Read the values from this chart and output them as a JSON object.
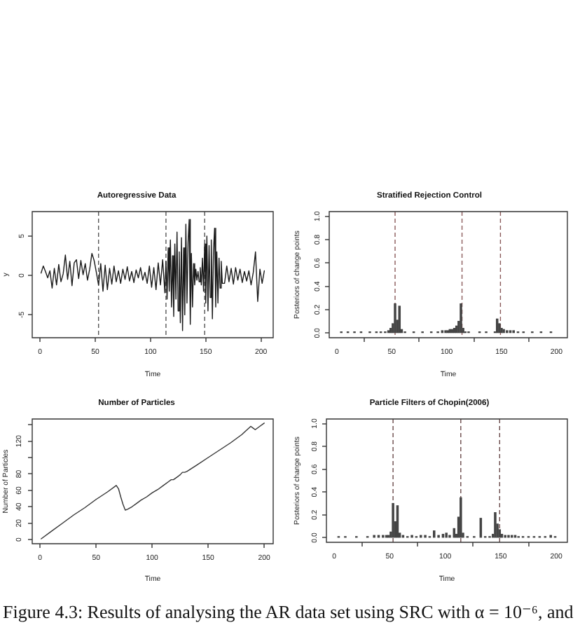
{
  "chart_data": [
    {
      "type": "line",
      "title": "Autoregressive Data",
      "xlabel": "Time",
      "ylabel": "y",
      "color": "#1a1a1a",
      "xlim": [
        -7,
        211
      ],
      "ylim": [
        -7.9,
        8.1
      ],
      "xticks": [
        0,
        50,
        100,
        150,
        200
      ],
      "yticks": [
        -5,
        0,
        5
      ],
      "x": [
        1,
        3,
        5,
        7,
        9,
        11,
        13,
        15,
        17,
        19,
        21,
        23,
        25,
        27,
        29,
        31,
        33,
        35,
        37,
        39,
        41,
        43,
        45,
        47,
        49,
        51,
        53,
        55,
        57,
        59,
        61,
        63,
        65,
        67,
        69,
        71,
        73,
        75,
        77,
        79,
        81,
        83,
        85,
        87,
        89,
        91,
        93,
        95,
        97,
        99,
        101,
        103,
        105,
        107,
        109,
        111,
        113,
        114,
        115,
        116,
        117,
        118,
        119,
        120,
        121,
        122,
        123,
        124,
        125,
        126,
        127,
        128,
        129,
        130,
        131,
        132,
        133,
        134,
        135,
        136,
        137,
        138,
        139,
        140,
        141,
        142,
        143,
        144,
        145,
        146,
        147,
        148,
        149,
        150,
        151,
        152,
        153,
        154,
        155,
        156,
        157,
        158,
        159,
        160,
        161,
        162,
        163,
        164,
        165,
        167,
        169,
        171,
        173,
        175,
        177,
        179,
        181,
        183,
        185,
        187,
        189,
        191,
        193,
        195,
        197,
        199,
        201,
        203
      ],
      "values": [
        0.3,
        1.2,
        0.5,
        -0.3,
        0.6,
        -1.6,
        0.9,
        -1.2,
        1.4,
        -0.8,
        0.2,
        2.6,
        -0.5,
        1.8,
        -1.3,
        1.6,
        2.0,
        -0.4,
        1.9,
        0.1,
        1.5,
        -0.6,
        0.8,
        2.8,
        1.9,
        0.4,
        -1.2,
        1.5,
        -2.0,
        1.3,
        -1.8,
        0.9,
        -1.1,
        1.2,
        -0.8,
        0.6,
        -1.0,
        0.8,
        -0.5,
        1.1,
        -0.7,
        0.5,
        -0.9,
        0.7,
        -0.3,
        1.0,
        -0.6,
        0.4,
        -1.0,
        1.2,
        -1.5,
        1.0,
        -1.8,
        1.6,
        -1.2,
        2.0,
        -2.2,
        1.8,
        -3.0,
        3.5,
        -2.0,
        4.5,
        -4.0,
        2.5,
        -5.2,
        4.0,
        -3.0,
        5.5,
        -4.5,
        3.0,
        -6.0,
        4.8,
        -7.0,
        3.5,
        -5.0,
        6.5,
        -3.5,
        4.2,
        7.1,
        -6.2,
        2.8,
        -4.0,
        1.5,
        -1.2,
        0.8,
        -0.6,
        0.5,
        -0.8,
        1.0,
        -1.2,
        2.2,
        -2.0,
        4.0,
        -3.5,
        5.0,
        -4.5,
        3.8,
        -2.8,
        4.5,
        -5.5,
        3.2,
        6.0,
        -4.0,
        3.0,
        -3.5,
        2.2,
        -1.6,
        1.8,
        -1.0,
        -1.0,
        1.2,
        -0.8,
        0.9,
        -1.1,
        1.0,
        -0.6,
        0.8,
        -0.9,
        0.5,
        -0.7,
        0.6,
        -1.2,
        0.4,
        3.0,
        -3.3,
        0.8,
        -1.0,
        0.6
      ],
      "ref_lines": [
        {
          "axis": "x",
          "value": 53,
          "color": "#555555",
          "line_style": "dashed"
        },
        {
          "axis": "x",
          "value": 114,
          "color": "#555555",
          "line_style": "dashed"
        },
        {
          "axis": "x",
          "value": 149,
          "color": "#555555",
          "line_style": "dashed"
        }
      ]
    },
    {
      "type": "bar",
      "title": "Stratified Rejection Control",
      "xlabel": "Time",
      "ylabel": "Posteriors of change points",
      "color": "#444444",
      "xlim": [
        -7,
        210
      ],
      "ylim": [
        -0.04,
        1.04
      ],
      "xticks": [
        0,
        50,
        100,
        150,
        200
      ],
      "yticks": [
        {
          "value": 0,
          "label": "0.0"
        },
        0.2,
        0.4,
        0.6,
        0.8,
        {
          "value": 1,
          "label": "1.0"
        }
      ],
      "x": [
        4,
        10,
        16,
        22,
        30,
        36,
        40,
        44,
        47,
        49,
        51,
        53,
        55,
        57,
        59,
        62,
        70,
        78,
        86,
        92,
        96,
        99,
        101,
        103,
        105,
        107,
        109,
        111,
        113,
        115,
        117,
        120,
        130,
        136,
        144,
        146,
        148,
        150,
        152,
        155,
        158,
        161,
        165,
        170,
        178,
        186,
        195
      ],
      "values": [
        0.01,
        0.01,
        0.01,
        0.01,
        0.01,
        0.01,
        0.01,
        0.01,
        0.02,
        0.04,
        0.08,
        0.25,
        0.11,
        0.23,
        0.03,
        0.01,
        0.01,
        0.01,
        0.01,
        0.01,
        0.02,
        0.02,
        0.02,
        0.03,
        0.03,
        0.04,
        0.06,
        0.1,
        0.25,
        0.04,
        0.01,
        0.01,
        0.01,
        0.01,
        0.01,
        0.12,
        0.08,
        0.04,
        0.03,
        0.02,
        0.02,
        0.02,
        0.01,
        0.01,
        0.01,
        0.01,
        0.01
      ],
      "ref_lines": [
        {
          "axis": "x",
          "value": 53,
          "color": "#8a5a5a",
          "line_style": "dashed"
        },
        {
          "axis": "x",
          "value": 114,
          "color": "#8a5a5a",
          "line_style": "dashed"
        },
        {
          "axis": "x",
          "value": 149,
          "color": "#8a5a5a",
          "line_style": "dashed"
        }
      ]
    },
    {
      "type": "line",
      "title": "Number of Particles",
      "xlabel": "Time",
      "ylabel": "Number of Particles",
      "color": "#333333",
      "xlim": [
        -7,
        208
      ],
      "ylim": [
        -5,
        147
      ],
      "xticks": [
        0,
        50,
        100,
        150,
        200
      ],
      "yticks": [
        0,
        20,
        40,
        60,
        80,
        {
          "value": 100,
          "label": null
        },
        120,
        {
          "value": 140,
          "label": null
        }
      ],
      "x": [
        1,
        10,
        20,
        30,
        40,
        50,
        60,
        68,
        70,
        72,
        74,
        76,
        78,
        82,
        86,
        90,
        95,
        100,
        105,
        110,
        115,
        117,
        119,
        121,
        125,
        127,
        129,
        131,
        140,
        150,
        160,
        170,
        180,
        188,
        190,
        192,
        196,
        200
      ],
      "values": [
        1,
        10,
        20,
        30,
        39,
        49,
        58,
        66,
        62,
        52,
        43,
        36,
        37,
        40,
        44,
        48,
        52,
        57,
        61,
        66,
        71,
        73,
        73,
        75,
        79,
        82,
        82,
        83,
        91,
        100,
        109,
        118,
        128,
        138,
        136,
        134,
        138,
        142
      ]
    },
    {
      "type": "bar",
      "title": "Particle Filters of Chopin(2006)",
      "xlabel": "Time",
      "ylabel": "Posteriors of change points",
      "color": "#444444",
      "xlim": [
        -7,
        210
      ],
      "ylim": [
        -0.04,
        1.04
      ],
      "xticks": [
        0,
        50,
        100,
        150,
        200
      ],
      "yticks": [
        {
          "value": 0,
          "label": "0.0"
        },
        0.2,
        0.4,
        0.6,
        0.8,
        {
          "value": 1,
          "label": "1.0"
        }
      ],
      "x": [
        4,
        10,
        20,
        30,
        36,
        40,
        44,
        47,
        49,
        51,
        53,
        55,
        57,
        59,
        62,
        66,
        70,
        74,
        78,
        82,
        86,
        90,
        94,
        98,
        101,
        104,
        108,
        110,
        112,
        114,
        116,
        120,
        126,
        132,
        136,
        140,
        143,
        145,
        147,
        149,
        151,
        154,
        157,
        160,
        163,
        166,
        170,
        175,
        180,
        185,
        190,
        195,
        199
      ],
      "values": [
        0.01,
        0.01,
        0.01,
        0.01,
        0.02,
        0.02,
        0.02,
        0.02,
        0.02,
        0.05,
        0.3,
        0.14,
        0.28,
        0.04,
        0.02,
        0.01,
        0.02,
        0.01,
        0.02,
        0.02,
        0.01,
        0.06,
        0.02,
        0.03,
        0.04,
        0.02,
        0.08,
        0.03,
        0.18,
        0.35,
        0.04,
        0.01,
        0.01,
        0.17,
        0.01,
        0.01,
        0.03,
        0.22,
        0.12,
        0.07,
        0.03,
        0.02,
        0.02,
        0.02,
        0.02,
        0.01,
        0.01,
        0.01,
        0.01,
        0.01,
        0.01,
        0.02,
        0.01
      ],
      "ref_lines": [
        {
          "axis": "x",
          "value": 53,
          "color": "#6a4a4a",
          "line_style": "dashed"
        },
        {
          "axis": "x",
          "value": 114,
          "color": "#6a4a4a",
          "line_style": "dashed"
        },
        {
          "axis": "x",
          "value": 149,
          "color": "#6a4a4a",
          "line_style": "dashed"
        }
      ],
      "annotations": [
        "Figure 4.3: Results of analysing the AR data set using SRC with α = 10⁻⁶, and"
      ]
    }
  ]
}
